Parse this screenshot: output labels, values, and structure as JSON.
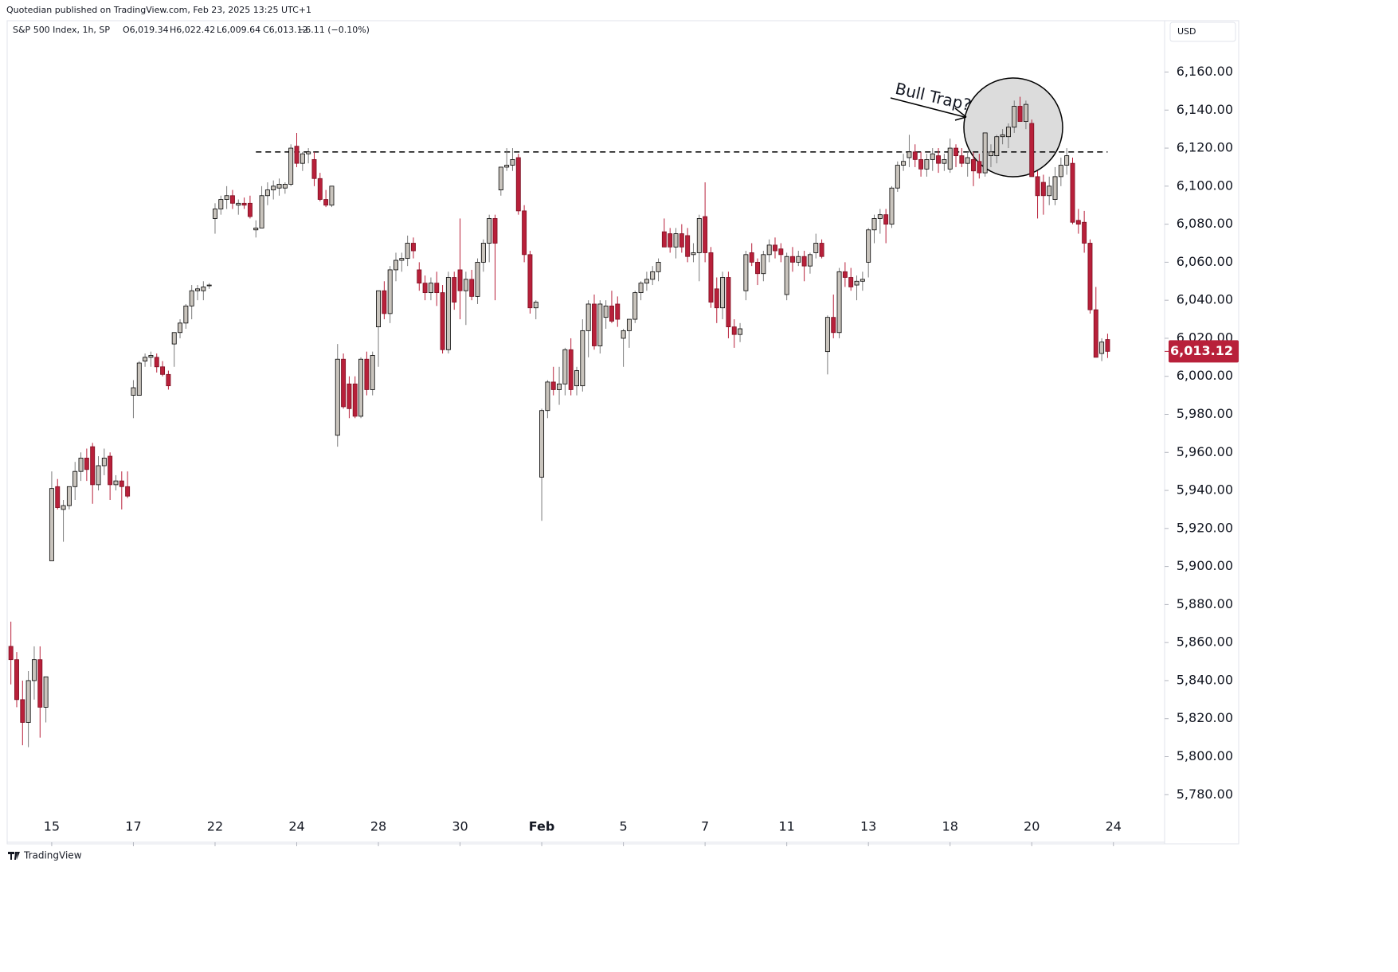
{
  "header": {
    "publisher": "Quotedian published on TradingView.com, Feb 23, 2025 13:25 UTC+1",
    "symbol": "S&P 500 Index, 1h, SP",
    "open": "O6,019.34",
    "high": "H6,022.42",
    "low": "L6,009.64",
    "close": "C6,013.12",
    "change": "−6.11 (−0.10%)"
  },
  "currency": "USD",
  "footer": "TradingView",
  "chart_data": {
    "type": "candlestick",
    "up_color": "#c9c4bd",
    "down_color": "#b8203a",
    "xlim": [
      -0.5,
      197.5
    ],
    "ylim": [
      5755,
      6187
    ],
    "xticks": [
      {
        "value": 7,
        "label": "15"
      },
      {
        "value": 21,
        "label": "17"
      },
      {
        "value": 35,
        "label": "22"
      },
      {
        "value": 49,
        "label": "24"
      },
      {
        "value": 63,
        "label": "28"
      },
      {
        "value": 77,
        "label": "30"
      },
      {
        "value": 91,
        "label": "Feb"
      },
      {
        "value": 105,
        "label": "5"
      },
      {
        "value": 119,
        "label": "7"
      },
      {
        "value": 133,
        "label": "11"
      },
      {
        "value": 147,
        "label": "13"
      },
      {
        "value": 161,
        "label": "18"
      },
      {
        "value": 175,
        "label": "20"
      },
      {
        "value": 189,
        "label": "24"
      }
    ],
    "yticks": [
      {
        "value": 5780,
        "label": "5,780.00"
      },
      {
        "value": 5800,
        "label": "5,800.00"
      },
      {
        "value": 5820,
        "label": "5,820.00"
      },
      {
        "value": 5840,
        "label": "5,840.00"
      },
      {
        "value": 5860,
        "label": "5,860.00"
      },
      {
        "value": 5880,
        "label": "5,880.00"
      },
      {
        "value": 5900,
        "label": "5,900.00"
      },
      {
        "value": 5920,
        "label": "5,920.00"
      },
      {
        "value": 5940,
        "label": "5,940.00"
      },
      {
        "value": 5960,
        "label": "5,960.00"
      },
      {
        "value": 5980,
        "label": "5,980.00"
      },
      {
        "value": 6000,
        "label": "6,000.00"
      },
      {
        "value": 6020,
        "label": "6,020.00"
      },
      {
        "value": 6040,
        "label": "6,040.00"
      },
      {
        "value": 6060,
        "label": "6,060.00"
      },
      {
        "value": 6080,
        "label": "6,080.00"
      },
      {
        "value": 6100,
        "label": "6,100.00"
      },
      {
        "value": 6120,
        "label": "6,120.00"
      },
      {
        "value": 6140,
        "label": "6,140.00"
      },
      {
        "value": 6160,
        "label": "6,160.00"
      }
    ],
    "last_price": {
      "value": 6013.12,
      "label": "6,013.12"
    },
    "resistance": {
      "value": 6118,
      "x": [
        42,
        188
      ]
    },
    "annotation": "Bull Trap?",
    "candles": [
      [
        5858,
        5871,
        5838,
        5851
      ],
      [
        5851,
        5855,
        5826,
        5830
      ],
      [
        5830,
        5840,
        5806,
        5818
      ],
      [
        5818,
        5845,
        5805,
        5840
      ],
      [
        5840,
        5858,
        5830,
        5851
      ],
      [
        5851,
        5858,
        5810,
        5826
      ],
      [
        5826,
        5842,
        5818,
        5842
      ],
      [
        5903,
        5950,
        5903,
        5941
      ],
      [
        5942,
        5946,
        5930,
        5931
      ],
      [
        5930,
        5935,
        5913,
        5932
      ],
      [
        5932,
        5942,
        5930,
        5942
      ],
      [
        5942,
        5955,
        5935,
        5950
      ],
      [
        5950,
        5960,
        5945,
        5957
      ],
      [
        5957,
        5962,
        5945,
        5951
      ],
      [
        5963,
        5965,
        5933,
        5943
      ],
      [
        5943,
        5958,
        5940,
        5953
      ],
      [
        5953,
        5962,
        5948,
        5957
      ],
      [
        5958,
        5960,
        5935,
        5943
      ],
      [
        5943,
        5948,
        5940,
        5945
      ],
      [
        5945,
        5950,
        5930,
        5942
      ],
      [
        5942,
        5950,
        5936,
        5937
      ],
      [
        5990,
        5998,
        5978,
        5994
      ],
      [
        5990,
        6008,
        5990,
        6007
      ],
      [
        6008,
        6012,
        6005,
        6010
      ],
      [
        6010,
        6013,
        6005,
        6011
      ],
      [
        6010,
        6012,
        6002,
        6005
      ],
      [
        6005,
        6008,
        6000,
        6001
      ],
      [
        6001,
        6003,
        5993,
        5995
      ],
      [
        6017,
        6023,
        6005,
        6023
      ],
      [
        6023,
        6030,
        6020,
        6028
      ],
      [
        6028,
        6038,
        6025,
        6037
      ],
      [
        6037,
        6048,
        6030,
        6045
      ],
      [
        6045,
        6048,
        6040,
        6046
      ],
      [
        6045,
        6050,
        6040,
        6047
      ],
      [
        6048,
        6049,
        6046,
        6048
      ],
      [
        6083,
        6091,
        6075,
        6088
      ],
      [
        6088,
        6095,
        6085,
        6093
      ],
      [
        6093,
        6100,
        6088,
        6095
      ],
      [
        6095,
        6098,
        6088,
        6091
      ],
      [
        6090,
        6093,
        6085,
        6091
      ],
      [
        6091,
        6094,
        6088,
        6090
      ],
      [
        6091,
        6095,
        6083,
        6084
      ],
      [
        6077,
        6082,
        6073,
        6078
      ],
      [
        6078,
        6100,
        6078,
        6095
      ],
      [
        6095,
        6102,
        6090,
        6098
      ],
      [
        6098,
        6103,
        6093,
        6100
      ],
      [
        6099,
        6104,
        6095,
        6101
      ],
      [
        6099,
        6102,
        6096,
        6101
      ],
      [
        6101,
        6122,
        6100,
        6120
      ],
      [
        6121,
        6128,
        6110,
        6112
      ],
      [
        6112,
        6118,
        6108,
        6117
      ],
      [
        6117,
        6120,
        6112,
        6118
      ],
      [
        6114,
        6118,
        6100,
        6104
      ],
      [
        6104,
        6107,
        6092,
        6093
      ],
      [
        6093,
        6098,
        6089,
        6090
      ],
      [
        6090,
        6100,
        6089,
        6100
      ],
      [
        5969,
        6017,
        5963,
        6009
      ],
      [
        6009,
        6012,
        5983,
        5984
      ],
      [
        5996,
        6000,
        5978,
        5983
      ],
      [
        5996,
        6000,
        5978,
        5979
      ],
      [
        5979,
        6010,
        5978,
        6009
      ],
      [
        6009,
        6013,
        5990,
        5993
      ],
      [
        5993,
        6013,
        5990,
        6011
      ],
      [
        6026,
        6045,
        6005,
        6045
      ],
      [
        6045,
        6050,
        6030,
        6033
      ],
      [
        6033,
        6058,
        6028,
        6056
      ],
      [
        6056,
        6065,
        6050,
        6061
      ],
      [
        6061,
        6065,
        6055,
        6062
      ],
      [
        6062,
        6074,
        6058,
        6070
      ],
      [
        6070,
        6073,
        6062,
        6066
      ],
      [
        6056,
        6060,
        6045,
        6049
      ],
      [
        6049,
        6053,
        6040,
        6044
      ],
      [
        6044,
        6052,
        6040,
        6049
      ],
      [
        6049,
        6055,
        6037,
        6044
      ],
      [
        6044,
        6048,
        6012,
        6014
      ],
      [
        6014,
        6055,
        6012,
        6052
      ],
      [
        6052,
        6055,
        6035,
        6039
      ],
      [
        6056,
        6083,
        6030,
        6045
      ],
      [
        6045,
        6055,
        6027,
        6051
      ],
      [
        6051,
        6056,
        6040,
        6042
      ],
      [
        6042,
        6062,
        6038,
        6060
      ],
      [
        6060,
        6072,
        6055,
        6070
      ],
      [
        6070,
        6085,
        6060,
        6083
      ],
      [
        6083,
        6085,
        6040,
        6070
      ],
      [
        6098,
        6110,
        6095,
        6110
      ],
      [
        6110,
        6120,
        6108,
        6111
      ],
      [
        6111,
        6120,
        6108,
        6114
      ],
      [
        6115,
        6117,
        6085,
        6087
      ],
      [
        6087,
        6090,
        6060,
        6064
      ],
      [
        6064,
        6066,
        6033,
        6036
      ],
      [
        6036,
        6040,
        6030,
        6039
      ],
      [
        5947,
        5983,
        5924,
        5982
      ],
      [
        5982,
        5998,
        5978,
        5997
      ],
      [
        5997,
        6005,
        5990,
        5993
      ],
      [
        5993,
        6005,
        5985,
        5996
      ],
      [
        5996,
        6015,
        5990,
        6014
      ],
      [
        6014,
        6020,
        5990,
        5993
      ],
      [
        5995,
        6005,
        5990,
        6003
      ],
      [
        5995,
        6030,
        5992,
        6024
      ],
      [
        6024,
        6040,
        6010,
        6038
      ],
      [
        6038,
        6043,
        6014,
        6016
      ],
      [
        6016,
        6040,
        6012,
        6038
      ],
      [
        6031,
        6040,
        6025,
        6037
      ],
      [
        6037,
        6045,
        6028,
        6029
      ],
      [
        6038,
        6042,
        6026,
        6030
      ],
      [
        6020,
        6025,
        6005,
        6024
      ],
      [
        6024,
        6030,
        6015,
        6030
      ],
      [
        6030,
        6045,
        6028,
        6044
      ],
      [
        6044,
        6050,
        6040,
        6049
      ],
      [
        6049,
        6055,
        6045,
        6051
      ],
      [
        6051,
        6058,
        6048,
        6055
      ],
      [
        6055,
        6062,
        6050,
        6060
      ],
      [
        6076,
        6083,
        6070,
        6068
      ],
      [
        6075,
        6078,
        6065,
        6068
      ],
      [
        6068,
        6078,
        6062,
        6075
      ],
      [
        6075,
        6080,
        6065,
        6068
      ],
      [
        6074,
        6078,
        6060,
        6063
      ],
      [
        6064,
        6070,
        6060,
        6065
      ],
      [
        6065,
        6085,
        6050,
        6083
      ],
      [
        6084,
        6102,
        6060,
        6065
      ],
      [
        6065,
        6068,
        6036,
        6039
      ],
      [
        6046,
        6052,
        6028,
        6036
      ],
      [
        6036,
        6055,
        6030,
        6052
      ],
      [
        6052,
        6055,
        6020,
        6026
      ],
      [
        6026,
        6030,
        6015,
        6022
      ],
      [
        6022,
        6028,
        6018,
        6025
      ],
      [
        6045,
        6066,
        6040,
        6064
      ],
      [
        6065,
        6070,
        6058,
        6060
      ],
      [
        6060,
        6062,
        6048,
        6054
      ],
      [
        6054,
        6066,
        6050,
        6064
      ],
      [
        6064,
        6072,
        6060,
        6069
      ],
      [
        6069,
        6073,
        6062,
        6066
      ],
      [
        6067,
        6070,
        6060,
        6064
      ],
      [
        6043,
        6065,
        6040,
        6063
      ],
      [
        6063,
        6068,
        6055,
        6060
      ],
      [
        6060,
        6066,
        6058,
        6063
      ],
      [
        6063,
        6066,
        6050,
        6058
      ],
      [
        6058,
        6065,
        6054,
        6064
      ],
      [
        6065,
        6075,
        6062,
        6070
      ],
      [
        6070,
        6072,
        6062,
        6063
      ],
      [
        6013,
        6032,
        6001,
        6031
      ],
      [
        6031,
        6043,
        6020,
        6023
      ],
      [
        6023,
        6057,
        6020,
        6055
      ],
      [
        6055,
        6060,
        6047,
        6052
      ],
      [
        6052,
        6057,
        6045,
        6047
      ],
      [
        6048,
        6053,
        6040,
        6050
      ],
      [
        6050,
        6055,
        6045,
        6051
      ],
      [
        6060,
        6078,
        6052,
        6077
      ],
      [
        6077,
        6085,
        6070,
        6083
      ],
      [
        6083,
        6088,
        6075,
        6085
      ],
      [
        6085,
        6088,
        6070,
        6080
      ],
      [
        6080,
        6100,
        6078,
        6099
      ],
      [
        6099,
        6113,
        6097,
        6111
      ],
      [
        6111,
        6117,
        6108,
        6113
      ],
      [
        6115,
        6127,
        6110,
        6118
      ],
      [
        6118,
        6122,
        6110,
        6114
      ],
      [
        6114,
        6118,
        6105,
        6109
      ],
      [
        6109,
        6117,
        6105,
        6114
      ],
      [
        6114,
        6120,
        6108,
        6117
      ],
      [
        6116,
        6120,
        6107,
        6112
      ],
      [
        6112,
        6117,
        6108,
        6114
      ],
      [
        6109,
        6125,
        6107,
        6120
      ],
      [
        6120,
        6122,
        6110,
        6116
      ],
      [
        6116,
        6120,
        6110,
        6112
      ],
      [
        6112,
        6118,
        6105,
        6115
      ],
      [
        6114,
        6118,
        6100,
        6108
      ],
      [
        6113,
        6117,
        6104,
        6107
      ],
      [
        6107,
        6128,
        6105,
        6128
      ],
      [
        6116,
        6122,
        6110,
        6118
      ],
      [
        6116,
        6127,
        6112,
        6126
      ],
      [
        6126,
        6130,
        6122,
        6127
      ],
      [
        6126,
        6133,
        6120,
        6131
      ],
      [
        6131,
        6145,
        6128,
        6142
      ],
      [
        6142,
        6147,
        6134,
        6134
      ],
      [
        6134,
        6145,
        6130,
        6143
      ],
      [
        6133,
        6135,
        6105,
        6105
      ],
      [
        6105,
        6108,
        6083,
        6095
      ],
      [
        6102,
        6106,
        6085,
        6095
      ],
      [
        6095,
        6105,
        6090,
        6100
      ],
      [
        6093,
        6110,
        6090,
        6105
      ],
      [
        6105,
        6115,
        6100,
        6111
      ],
      [
        6111,
        6120,
        6106,
        6116
      ],
      [
        6112,
        6115,
        6080,
        6081
      ],
      [
        6082,
        6088,
        6075,
        6080
      ],
      [
        6081,
        6087,
        6065,
        6070
      ],
      [
        6070,
        6072,
        6033,
        6035
      ],
      [
        6035,
        6047,
        6010,
        6010
      ],
      [
        6012,
        6020,
        6008,
        6018
      ],
      [
        6019.34,
        6022.42,
        6009.64,
        6013.12
      ]
    ]
  }
}
